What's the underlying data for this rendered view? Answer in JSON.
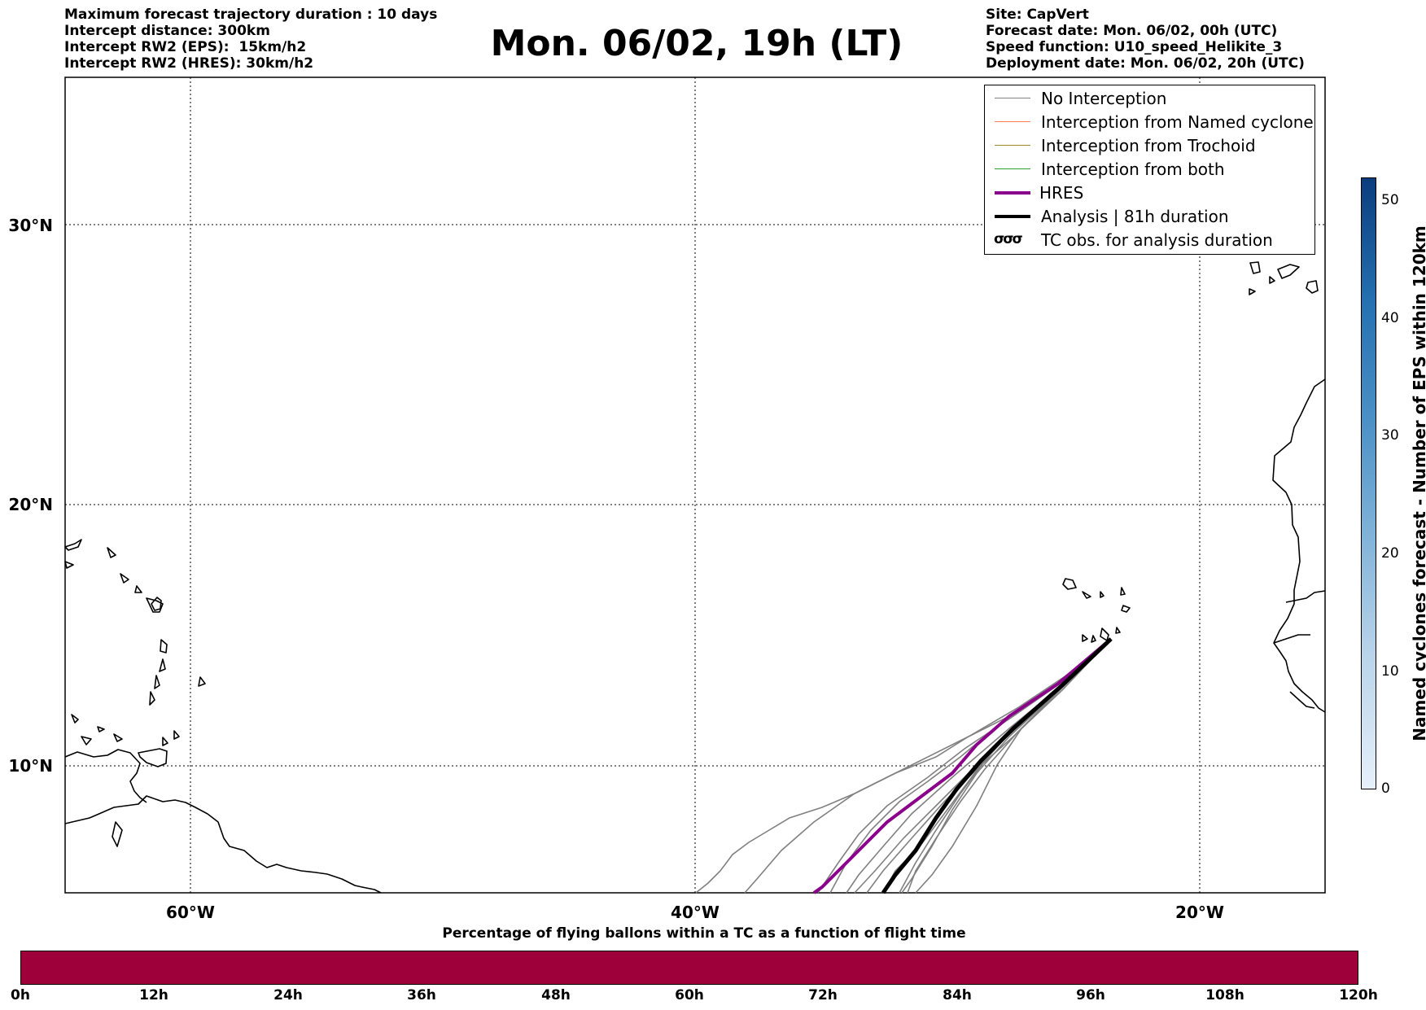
{
  "header_left": [
    "Maximum forecast trajectory duration : 10 days",
    "Intercept distance: 300km",
    "Intercept RW2 (EPS):  15km/h2",
    "Intercept RW2 (HRES): 30km/h2"
  ],
  "title": "Mon. 06/02, 19h (LT)",
  "header_right": [
    "Site: CapVert",
    "Forecast date: Mon. 06/02, 00h (UTC)",
    "Speed function: U10_speed_Helikite_3",
    "Deployment date: Mon. 06/02, 20h (UTC)"
  ],
  "map": {
    "lon_range": [
      -65,
      15
    ],
    "lat_range": [
      5.5,
      34.5
    ],
    "lon_ticks": [
      {
        "value": -60,
        "label": "60°W"
      },
      {
        "value": -40,
        "label": "40°W"
      },
      {
        "value": -20,
        "label": "20°W"
      }
    ],
    "lat_ticks": [
      {
        "value": 30,
        "label": "30°N"
      },
      {
        "value": 20,
        "label": "20°N"
      },
      {
        "value": 10,
        "label": "10°N"
      }
    ],
    "grid": true,
    "launch_site": {
      "lon": -24.2,
      "lat": 14.7
    }
  },
  "legend": {
    "items": [
      {
        "label": "No Interception",
        "color": "#808080",
        "style": "thin"
      },
      {
        "label": "Interception from Named cyclone",
        "color": "#ff7f50",
        "style": "thin"
      },
      {
        "label": "Interception from Trochoid",
        "color": "#9c8a30",
        "style": "thin"
      },
      {
        "label": "Interception from both",
        "color": "#2ca02c",
        "style": "thin"
      },
      {
        "label": "HRES",
        "color": "#8b008b",
        "style": "thick"
      },
      {
        "label": "Analysis | 81h duration",
        "color": "#000000",
        "style": "thick"
      },
      {
        "label": "TC obs. for analysis duration",
        "symbol": "σσσ",
        "style": "symbol"
      }
    ]
  },
  "colorbar_right": {
    "label": "Named cyclones forecast - Number of EPS within 120km",
    "ticks": [
      "0",
      "10",
      "20",
      "30",
      "40",
      "50"
    ],
    "range": [
      0,
      52
    ]
  },
  "colorbar_bottom": {
    "title": "Percentage of flying ballons within a TC as a function of flight time",
    "ticks": [
      "0h",
      "12h",
      "24h",
      "36h",
      "48h",
      "60h",
      "72h",
      "84h",
      "96h",
      "108h",
      "120h"
    ],
    "fill_color": "#9e003a"
  }
}
